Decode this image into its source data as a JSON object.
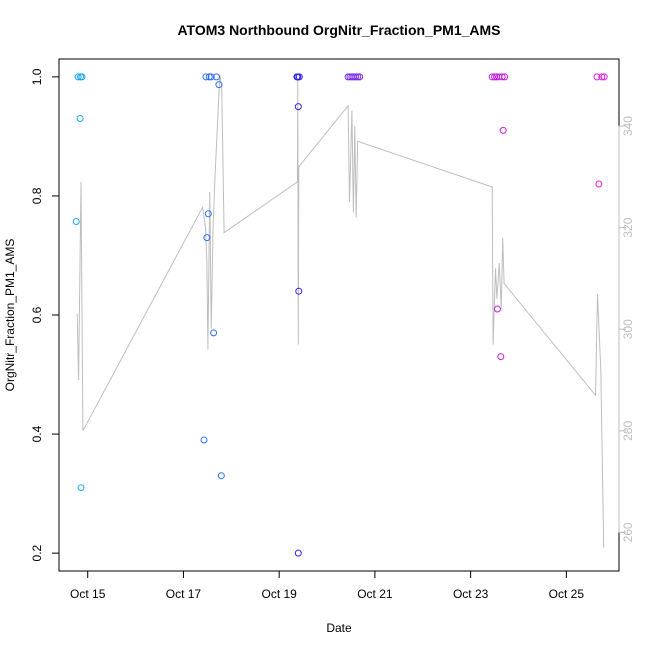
{
  "chart_data": {
    "type": "scatter",
    "title": "ATOM3 Northbound OrgNitr_Fraction_PM1_AMS",
    "xlabel": "Date",
    "ylabel": "OrgNitr_Fraction_PM1_AMS",
    "x_ticks": [
      {
        "day": 15,
        "label": "Oct 15"
      },
      {
        "day": 17,
        "label": "Oct 17"
      },
      {
        "day": 19,
        "label": "Oct 19"
      },
      {
        "day": 21,
        "label": "Oct 21"
      },
      {
        "day": 23,
        "label": "Oct 23"
      },
      {
        "day": 25,
        "label": "Oct 25"
      }
    ],
    "xlim": [
      14.4,
      26.1
    ],
    "ylim": [
      0.17,
      1.03
    ],
    "y_ticks": [
      0.2,
      0.4,
      0.6,
      0.8,
      1.0
    ],
    "y_tick_labels": [
      "0.2",
      "0.4",
      "0.6",
      "0.8",
      "1.0"
    ],
    "right_axis": {
      "ylim": [
        252.4,
        353.2
      ],
      "ticks": [
        260,
        280,
        300,
        320,
        340
      ],
      "tick_labels": [
        "260",
        "280",
        "300",
        "320",
        "340"
      ],
      "color": "#bebebe"
    },
    "grid": false,
    "legend": "none",
    "scatter_points": [
      {
        "x": 14.76,
        "y": 0.757,
        "color": "#1ba7ff"
      },
      {
        "x": 14.8,
        "y": 1.0,
        "color": "#1ba7ff"
      },
      {
        "x": 14.84,
        "y": 0.93,
        "color": "#1ba7ff"
      },
      {
        "x": 14.85,
        "y": 1.0,
        "color": "#1ba7ff"
      },
      {
        "x": 14.86,
        "y": 0.31,
        "color": "#1ba7ff"
      },
      {
        "x": 14.88,
        "y": 1.0,
        "color": "#1ba7ff"
      },
      {
        "x": 17.43,
        "y": 0.39,
        "color": "#2e6fff"
      },
      {
        "x": 17.47,
        "y": 1.0,
        "color": "#2e6fff"
      },
      {
        "x": 17.49,
        "y": 0.73,
        "color": "#2e6fff"
      },
      {
        "x": 17.52,
        "y": 0.77,
        "color": "#2e6fff"
      },
      {
        "x": 17.54,
        "y": 1.0,
        "color": "#2e6fff"
      },
      {
        "x": 17.58,
        "y": 1.0,
        "color": "#2e6fff"
      },
      {
        "x": 17.63,
        "y": 0.57,
        "color": "#2e6fff"
      },
      {
        "x": 17.69,
        "y": 1.0,
        "color": "#2e6fff"
      },
      {
        "x": 17.74,
        "y": 0.987,
        "color": "#2e6fff"
      },
      {
        "x": 17.79,
        "y": 0.33,
        "color": "#2e6fff"
      },
      {
        "x": 19.37,
        "y": 1.0,
        "color": "#3322ee"
      },
      {
        "x": 19.39,
        "y": 1.0,
        "color": "#3322ee"
      },
      {
        "x": 19.4,
        "y": 0.95,
        "color": "#3322ee"
      },
      {
        "x": 19.4,
        "y": 0.2,
        "color": "#3322ee"
      },
      {
        "x": 19.41,
        "y": 0.64,
        "color": "#3322ee"
      },
      {
        "x": 19.42,
        "y": 1.0,
        "color": "#3322ee"
      },
      {
        "x": 20.44,
        "y": 1.0,
        "color": "#7a2ee6"
      },
      {
        "x": 20.48,
        "y": 1.0,
        "color": "#7a2ee6"
      },
      {
        "x": 20.52,
        "y": 1.0,
        "color": "#7a2ee6"
      },
      {
        "x": 20.56,
        "y": 1.0,
        "color": "#7a2ee6"
      },
      {
        "x": 20.6,
        "y": 1.0,
        "color": "#7a2ee6"
      },
      {
        "x": 20.64,
        "y": 1.0,
        "color": "#7a2ee6"
      },
      {
        "x": 20.68,
        "y": 1.0,
        "color": "#7a2ee6"
      },
      {
        "x": 23.45,
        "y": 1.0,
        "color": "#c41fe0"
      },
      {
        "x": 23.5,
        "y": 1.0,
        "color": "#c41fe0"
      },
      {
        "x": 23.54,
        "y": 1.0,
        "color": "#c41fe0"
      },
      {
        "x": 23.56,
        "y": 0.61,
        "color": "#c41fe0"
      },
      {
        "x": 23.59,
        "y": 1.0,
        "color": "#c41fe0"
      },
      {
        "x": 23.63,
        "y": 0.53,
        "color": "#c41fe0"
      },
      {
        "x": 23.66,
        "y": 1.0,
        "color": "#c41fe0"
      },
      {
        "x": 23.68,
        "y": 0.91,
        "color": "#c41fe0"
      },
      {
        "x": 23.71,
        "y": 1.0,
        "color": "#c41fe0"
      },
      {
        "x": 25.64,
        "y": 1.0,
        "color": "#e21ee0"
      },
      {
        "x": 25.68,
        "y": 0.82,
        "color": "#e21ee0"
      },
      {
        "x": 25.74,
        "y": 1.0,
        "color": "#e21ee0"
      },
      {
        "x": 25.79,
        "y": 1.0,
        "color": "#e21ee0"
      }
    ],
    "line_series": {
      "axis": "right",
      "color": "#bebebe",
      "points": [
        {
          "x": 14.78,
          "y": 303
        },
        {
          "x": 14.81,
          "y": 290
        },
        {
          "x": 14.86,
          "y": 329
        },
        {
          "x": 14.9,
          "y": 280
        },
        {
          "x": 17.4,
          "y": 324
        },
        {
          "x": 17.46,
          "y": 320
        },
        {
          "x": 17.49,
          "y": 313
        },
        {
          "x": 17.51,
          "y": 296
        },
        {
          "x": 17.55,
          "y": 327
        },
        {
          "x": 17.58,
          "y": 300
        },
        {
          "x": 17.62,
          "y": 320
        },
        {
          "x": 17.66,
          "y": 330
        },
        {
          "x": 17.76,
          "y": 350
        },
        {
          "x": 17.8,
          "y": 348
        },
        {
          "x": 17.85,
          "y": 319
        },
        {
          "x": 19.38,
          "y": 329
        },
        {
          "x": 19.39,
          "y": 349
        },
        {
          "x": 19.4,
          "y": 297
        },
        {
          "x": 19.41,
          "y": 332
        },
        {
          "x": 20.44,
          "y": 344
        },
        {
          "x": 20.47,
          "y": 325
        },
        {
          "x": 20.52,
          "y": 343
        },
        {
          "x": 20.55,
          "y": 323
        },
        {
          "x": 20.58,
          "y": 340
        },
        {
          "x": 20.61,
          "y": 322
        },
        {
          "x": 20.64,
          "y": 337
        },
        {
          "x": 23.45,
          "y": 328
        },
        {
          "x": 23.47,
          "y": 297
        },
        {
          "x": 23.52,
          "y": 312
        },
        {
          "x": 23.55,
          "y": 306
        },
        {
          "x": 23.6,
          "y": 313
        },
        {
          "x": 23.64,
          "y": 304
        },
        {
          "x": 23.67,
          "y": 318
        },
        {
          "x": 23.7,
          "y": 309
        },
        {
          "x": 25.61,
          "y": 287
        },
        {
          "x": 25.65,
          "y": 307
        },
        {
          "x": 25.72,
          "y": 292
        },
        {
          "x": 25.78,
          "y": 257
        }
      ]
    }
  }
}
